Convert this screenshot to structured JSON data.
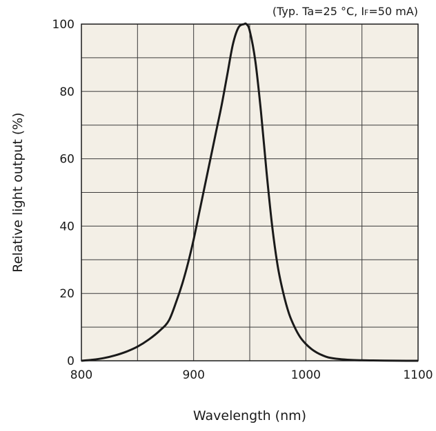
{
  "chart_data": {
    "type": "line",
    "title": "",
    "conditions": {
      "prefix": "(Typ. Ta=25 °C, I",
      "subscript": "F",
      "suffix": "=50 mA)"
    },
    "xlabel": "Wavelength (nm)",
    "ylabel": "Relative light output (%)",
    "xlim": [
      800,
      1100
    ],
    "ylim": [
      0,
      100
    ],
    "x_major_ticks": [
      800,
      900,
      1000,
      1100
    ],
    "x_tick_labels": [
      "800",
      "900",
      "1000",
      "1100"
    ],
    "x_minor_step": 50,
    "y_major_ticks": [
      0,
      20,
      40,
      60,
      80,
      100
    ],
    "y_tick_labels": [
      "0",
      "20",
      "40",
      "60",
      "80",
      "100"
    ],
    "y_minor_step": 10,
    "grid": true,
    "colors": {
      "plot_background": "#f3efe6",
      "grid": "#3a3a3a",
      "line": "#1a1a1a",
      "frame": "#1a1a1a"
    },
    "series": [
      {
        "x": [
          800,
          810,
          820,
          830,
          840,
          850,
          860,
          870,
          878,
          885,
          890,
          895,
          900,
          905,
          910,
          915,
          920,
          925,
          930,
          935,
          940,
          945,
          947,
          950,
          955,
          960,
          965,
          970,
          975,
          980,
          985,
          990,
          995,
          1000,
          1005,
          1010,
          1015,
          1020,
          1030,
          1040,
          1050,
          1060,
          1070,
          1080,
          1090,
          1100
        ],
        "y": [
          0,
          0.3,
          0.8,
          1.6,
          2.7,
          4.2,
          6.3,
          9.0,
          12,
          18,
          23,
          29,
          36,
          44,
          52,
          60,
          68,
          76,
          85,
          94,
          99,
          100,
          100,
          98,
          89,
          74,
          56,
          40,
          28,
          20,
          14,
          10,
          7.0,
          5.0,
          3.5,
          2.4,
          1.6,
          1.0,
          0.5,
          0.25,
          0.15,
          0.1,
          0.05,
          0.03,
          0.01,
          0
        ]
      }
    ]
  }
}
